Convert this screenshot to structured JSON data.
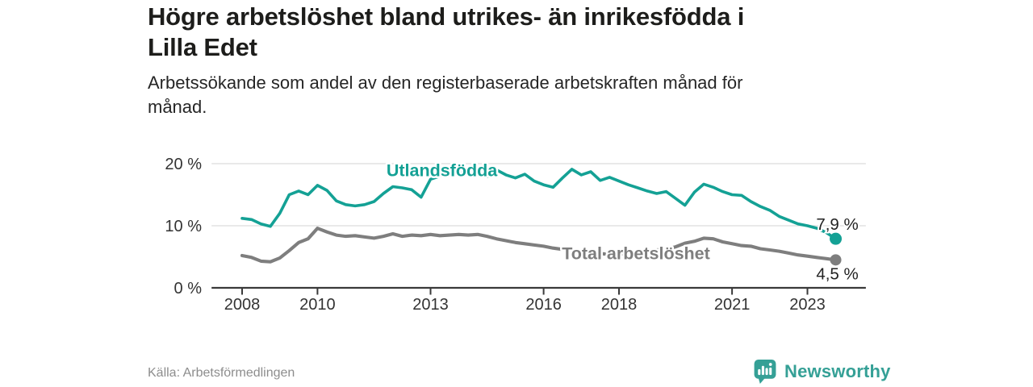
{
  "header": {
    "title": "Högre arbetslöshet bland utrikes- än inrikesfödda i Lilla Edet",
    "title_lines": [
      "Högre arbetslöshet bland utrikes- än inrikesfödda i",
      "Lilla Edet"
    ],
    "subtitle": "Arbetssökande som andel av den registerbaserade arbetskraften månad för månad.",
    "subtitle_lines": [
      "Arbetssökande som andel av den registerbaserade arbetskraften månad för",
      "månad."
    ]
  },
  "footer": {
    "source": "Källa: Arbetsförmedlingen",
    "brand": "Newsworthy",
    "logo_icon": "speech-bubble-bar-chart"
  },
  "colors": {
    "accent_teal": "#14a195",
    "series_gray": "#7e7e7e",
    "grid": "#dcdcdc",
    "axis": "#3a3a3a",
    "tick_text": "#333333",
    "value_label_text": "#222222",
    "title_text": "#1d1d1b",
    "subtitle_text": "#262626",
    "source_text": "#8d8d8d",
    "logo_teal": "#35a096",
    "background": "#ffffff"
  },
  "chart_data": {
    "type": "line",
    "title": "Högre arbetslöshet bland utrikes- än inrikesfödda i Lilla Edet",
    "subtitle": "Arbetssökande som andel av den registerbaserade arbetskraften månad för månad.",
    "y_unit": "percent",
    "x_unit": "year (monthly series, sampled quarterly)",
    "grid": "horizontal",
    "legend_position": "inline-labels",
    "ylim": [
      0,
      21
    ],
    "xlim": [
      2007.19,
      2024.55
    ],
    "yticks": [
      {
        "value": 0,
        "label": "0 %"
      },
      {
        "value": 10,
        "label": "10 %"
      },
      {
        "value": 20,
        "label": "20 %"
      }
    ],
    "xticks": [
      {
        "value": 2008,
        "label": "2008"
      },
      {
        "value": 2010,
        "label": "2010"
      },
      {
        "value": 2013,
        "label": "2013"
      },
      {
        "value": 2016,
        "label": "2016"
      },
      {
        "value": 2018,
        "label": "2018"
      },
      {
        "value": 2021,
        "label": "2021"
      },
      {
        "value": 2023,
        "label": "2023"
      }
    ],
    "x": [
      2008,
      2008.25,
      2008.5,
      2008.75,
      2009,
      2009.25,
      2009.5,
      2009.75,
      2010,
      2010.25,
      2010.5,
      2010.75,
      2011,
      2011.25,
      2011.5,
      2011.75,
      2012,
      2012.25,
      2012.5,
      2012.75,
      2013,
      2013.25,
      2013.5,
      2013.75,
      2014,
      2014.25,
      2014.5,
      2014.75,
      2015,
      2015.25,
      2015.5,
      2015.75,
      2016,
      2016.25,
      2016.5,
      2016.75,
      2017,
      2017.25,
      2017.5,
      2017.75,
      2018,
      2018.25,
      2018.5,
      2018.75,
      2019,
      2019.25,
      2019.5,
      2019.75,
      2020,
      2020.25,
      2020.5,
      2020.75,
      2021,
      2021.25,
      2021.5,
      2021.75,
      2022,
      2022.25,
      2022.5,
      2022.75,
      2023,
      2023.25,
      2023.5,
      2023.75
    ],
    "series": [
      {
        "id": "utlandsfodda",
        "name": "Utlandsfödda",
        "color": "#14a195",
        "end_label": "7,9 %",
        "end_value": 7.9,
        "label_anchor": {
          "x": 2013.3,
          "y": 18.9
        },
        "values": [
          11.2,
          11.0,
          10.3,
          9.9,
          12.0,
          15.0,
          15.6,
          15.0,
          16.5,
          15.7,
          14.0,
          13.4,
          13.2,
          13.4,
          13.9,
          15.2,
          16.3,
          16.1,
          15.8,
          14.6,
          17.5,
          18.0,
          18.3,
          18.6,
          18.2,
          18.5,
          17.9,
          19.0,
          18.2,
          17.7,
          18.3,
          17.2,
          16.6,
          16.2,
          17.7,
          19.1,
          18.2,
          18.7,
          17.3,
          17.8,
          17.2,
          16.6,
          16.1,
          15.6,
          15.2,
          15.5,
          14.4,
          13.3,
          15.4,
          16.7,
          16.2,
          15.5,
          15.0,
          14.9,
          13.9,
          13.1,
          12.5,
          11.5,
          10.9,
          10.3,
          10.0,
          9.6,
          8.9,
          7.9
        ]
      },
      {
        "id": "total-arbetsloshet",
        "name": "Total arbetslöshet",
        "color": "#7e7e7e",
        "end_label": "4,5 %",
        "end_value": 4.5,
        "label_anchor": {
          "x": 2018.45,
          "y": 5.55
        },
        "values": [
          5.2,
          4.9,
          4.3,
          4.2,
          4.8,
          6.0,
          7.3,
          7.9,
          9.6,
          9.0,
          8.5,
          8.3,
          8.4,
          8.2,
          8.0,
          8.3,
          8.7,
          8.3,
          8.5,
          8.4,
          8.6,
          8.4,
          8.5,
          8.6,
          8.5,
          8.6,
          8.3,
          7.9,
          7.6,
          7.3,
          7.1,
          6.9,
          6.7,
          6.4,
          6.2,
          6.0,
          5.8,
          5.6,
          5.5,
          5.4,
          5.4,
          5.5,
          5.7,
          5.9,
          6.1,
          6.3,
          6.6,
          7.2,
          7.5,
          8.0,
          7.9,
          7.4,
          7.1,
          6.8,
          6.7,
          6.3,
          6.1,
          5.9,
          5.6,
          5.3,
          5.1,
          4.9,
          4.7,
          4.5
        ]
      }
    ]
  }
}
